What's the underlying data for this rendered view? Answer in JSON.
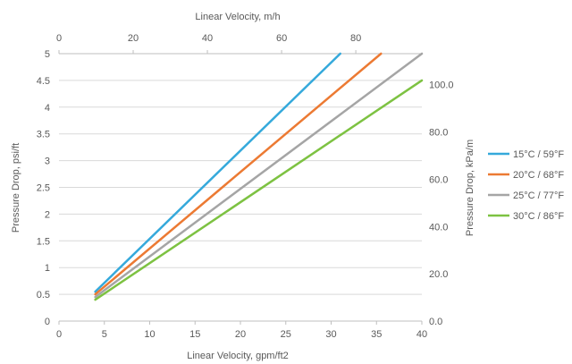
{
  "chart_data": {
    "type": "line",
    "title": "",
    "xlabel": "Linear Velocity, gpm/ft2",
    "ylabel": "Pressure Drop, psi/ft",
    "x2label": "Linear Velocity, m/h",
    "y2label": "Pressure Drop, kPa/m",
    "xlim": [
      0,
      40
    ],
    "ylim": [
      0,
      5
    ],
    "x2lim": [
      0,
      97.8
    ],
    "y2lim": [
      0,
      113.1
    ],
    "x_ticks": [
      "0",
      "5",
      "10",
      "15",
      "20",
      "25",
      "30",
      "35",
      "40"
    ],
    "y_ticks": [
      "0",
      "0.5",
      "1",
      "1.5",
      "2",
      "2.5",
      "3",
      "3.5",
      "4",
      "4.5",
      "5"
    ],
    "x2_ticks": [
      "0",
      "20",
      "40",
      "60",
      "80"
    ],
    "y2_ticks": [
      "0.0",
      "20.0",
      "40.0",
      "60.0",
      "80.0",
      "100.0"
    ],
    "grid": "horizontal",
    "legend_position": "right",
    "series": [
      {
        "name": "15°C / 59°F",
        "color": "#35a9db",
        "x": [
          4,
          31
        ],
        "y": [
          0.55,
          5.0
        ]
      },
      {
        "name": "20°C / 68°F",
        "color": "#ec7a33",
        "x": [
          4,
          35.5
        ],
        "y": [
          0.5,
          5.0
        ]
      },
      {
        "name": "25°C / 77°F",
        "color": "#a5a5a5",
        "x": [
          4,
          40
        ],
        "y": [
          0.45,
          5.0
        ]
      },
      {
        "name": "30°C / 86°F",
        "color": "#7dc242",
        "x": [
          4,
          40
        ],
        "y": [
          0.4,
          4.5
        ]
      }
    ]
  }
}
